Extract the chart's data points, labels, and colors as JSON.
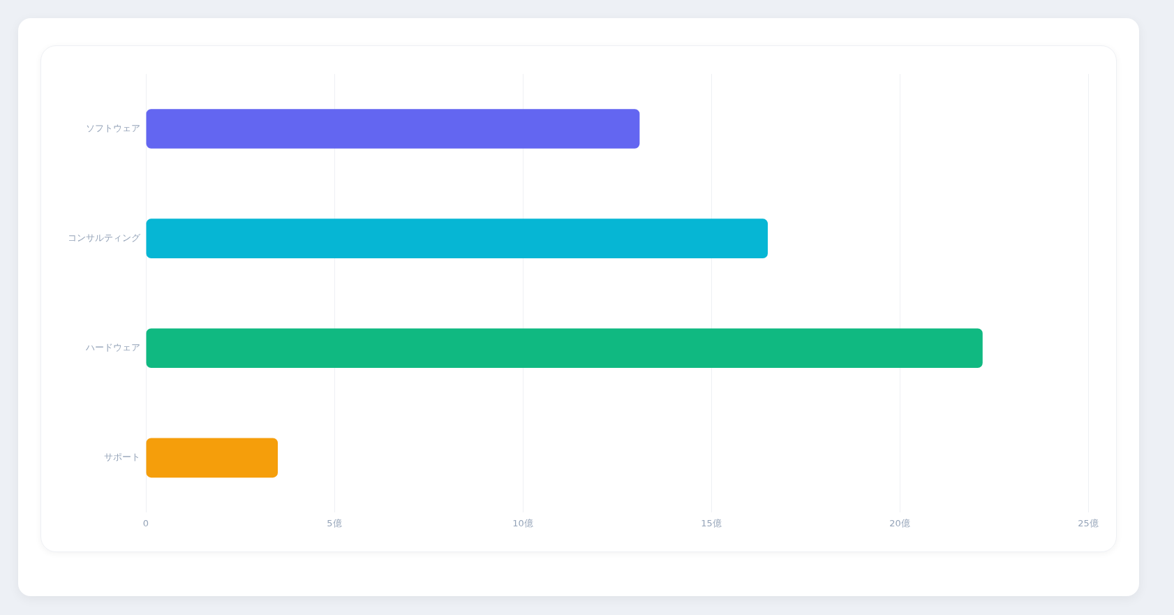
{
  "chart_data": {
    "type": "bar",
    "orientation": "horizontal",
    "categories": [
      "ソフトウェア",
      "コンサルティング",
      "ハードウェア",
      "サポート"
    ],
    "values": [
      13.1,
      16.5,
      22.2,
      3.5
    ],
    "colors": [
      "#6366f1",
      "#06b6d4",
      "#10b981",
      "#f59e0b"
    ],
    "xlim": [
      0,
      25
    ],
    "xticks": [
      0,
      {
        "value": 5,
        "label": "5億"
      },
      {
        "value": 10,
        "label": "10億"
      },
      {
        "value": 15,
        "label": "15億"
      },
      {
        "value": 20,
        "label": "20億"
      },
      {
        "value": 25,
        "label": "25億"
      }
    ],
    "grid": "x"
  }
}
